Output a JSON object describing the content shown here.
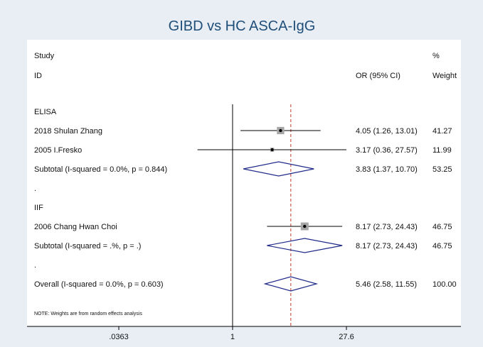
{
  "chart_data": {
    "type": "forest",
    "title": "GIBD vs HC ASCA-IgG",
    "header": {
      "study_label_1": "Study",
      "study_label_2": "ID",
      "effect_label": "OR (95% CI)",
      "weight_label_1": "%",
      "weight_label_2": "Weight"
    },
    "rows": [
      {
        "kind": "group",
        "label": "ELISA"
      },
      {
        "kind": "study",
        "label": "2018 Shulan Zhang",
        "or": 4.05,
        "lo": 1.26,
        "hi": 13.01,
        "ci_text": "4.05 (1.26, 13.01)",
        "weight": 41.27,
        "weight_text": "41.27"
      },
      {
        "kind": "study",
        "label": "2005 I.Fresko",
        "or": 3.17,
        "lo": 0.36,
        "hi": 27.57,
        "ci_text": "3.17 (0.36, 27.57)",
        "weight": 11.99,
        "weight_text": "11.99"
      },
      {
        "kind": "subtotal",
        "label": "Subtotal  (I-squared = 0.0%, p = 0.844)",
        "or": 3.83,
        "lo": 1.37,
        "hi": 10.7,
        "ci_text": "3.83 (1.37, 10.70)",
        "weight_text": "53.25"
      },
      {
        "kind": "spacer",
        "label": "."
      },
      {
        "kind": "group",
        "label": "IIF"
      },
      {
        "kind": "study",
        "label": "2006 Chang Hwan Choi",
        "or": 8.17,
        "lo": 2.73,
        "hi": 24.43,
        "ci_text": "8.17 (2.73, 24.43)",
        "weight": 46.75,
        "weight_text": "46.75"
      },
      {
        "kind": "subtotal",
        "label": "Subtotal  (I-squared = .%, p = .)",
        "or": 8.17,
        "lo": 2.73,
        "hi": 24.43,
        "ci_text": "8.17 (2.73, 24.43)",
        "weight_text": "46.75"
      },
      {
        "kind": "spacer",
        "label": "."
      },
      {
        "kind": "overall",
        "label": "Overall  (I-squared = 0.0%, p = 0.603)",
        "or": 5.46,
        "lo": 2.58,
        "hi": 11.55,
        "ci_text": "5.46 (2.58, 11.55)",
        "weight_text": "100.00"
      }
    ],
    "note": "NOTE: Weights are from random effects analysis",
    "x_scale": "log",
    "xlim": [
      0.0363,
      27.6
    ],
    "xticks": [
      {
        "value": 0.0363,
        "label": ".0363"
      },
      {
        "value": 1,
        "label": "1"
      },
      {
        "value": 27.6,
        "label": "27.6"
      }
    ],
    "null_line": 1,
    "overall_line": 5.46,
    "colors": {
      "title": "#1f4e79",
      "diamond": "#1f2a8a",
      "box": "#a6a6a6",
      "line": "#000000",
      "overall_dash": "#c0392b",
      "frame_bg": "#e8eef4"
    }
  }
}
